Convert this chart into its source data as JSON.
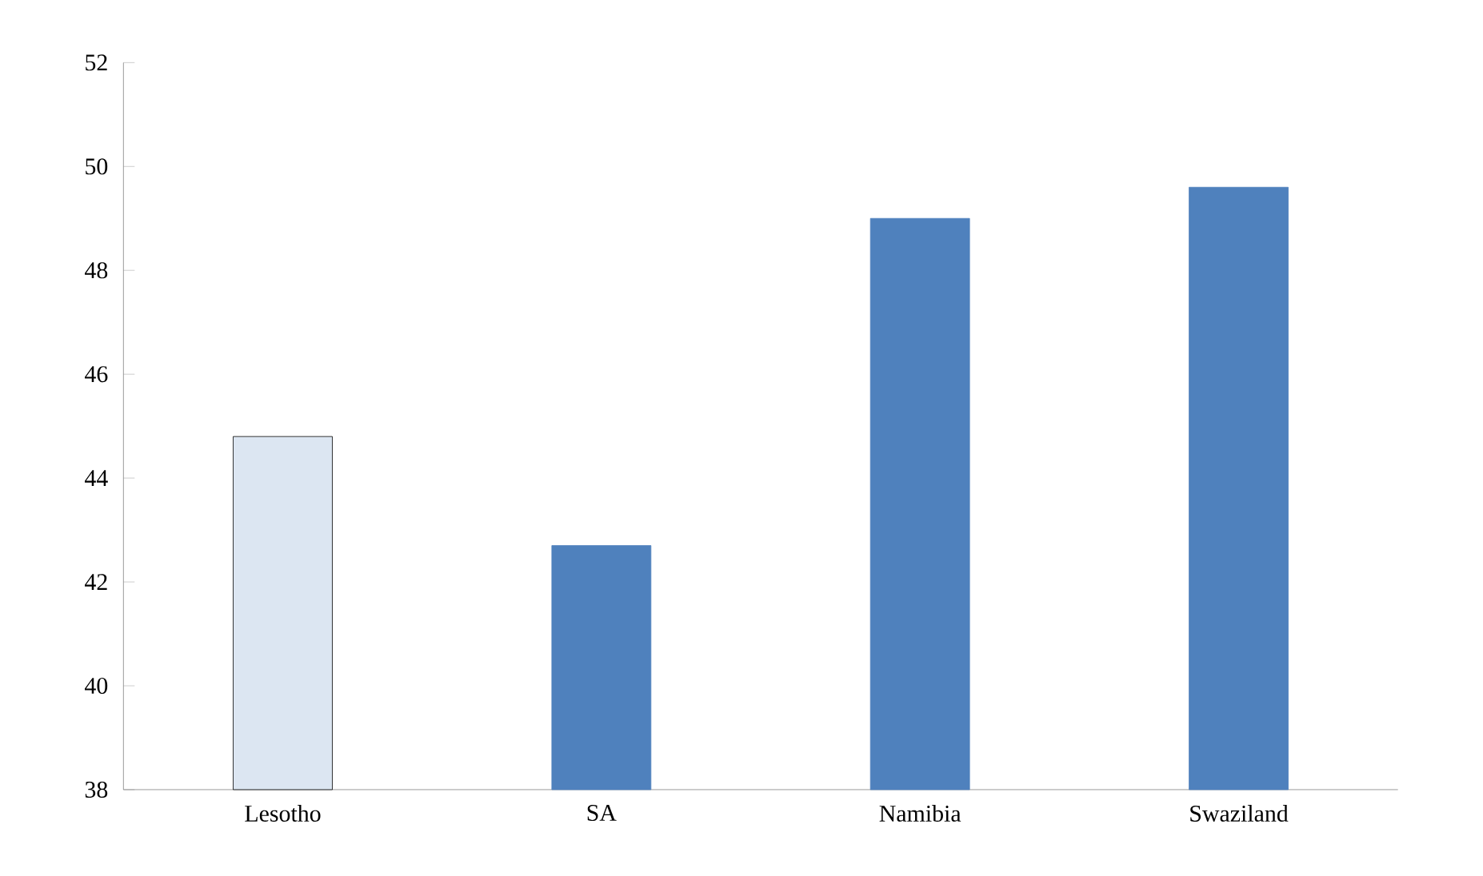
{
  "chart_data": {
    "type": "bar",
    "categories": [
      "Lesotho",
      "SA",
      "Namibia",
      "Swaziland"
    ],
    "values": [
      44.8,
      42.7,
      49.0,
      49.6
    ],
    "colors": [
      "#dce6f2",
      "#4f81bd",
      "#4f81bd",
      "#4f81bd"
    ],
    "ylim": [
      38,
      52
    ],
    "yticks": [
      38,
      40,
      42,
      44,
      46,
      48,
      50,
      52
    ],
    "grid": false
  }
}
